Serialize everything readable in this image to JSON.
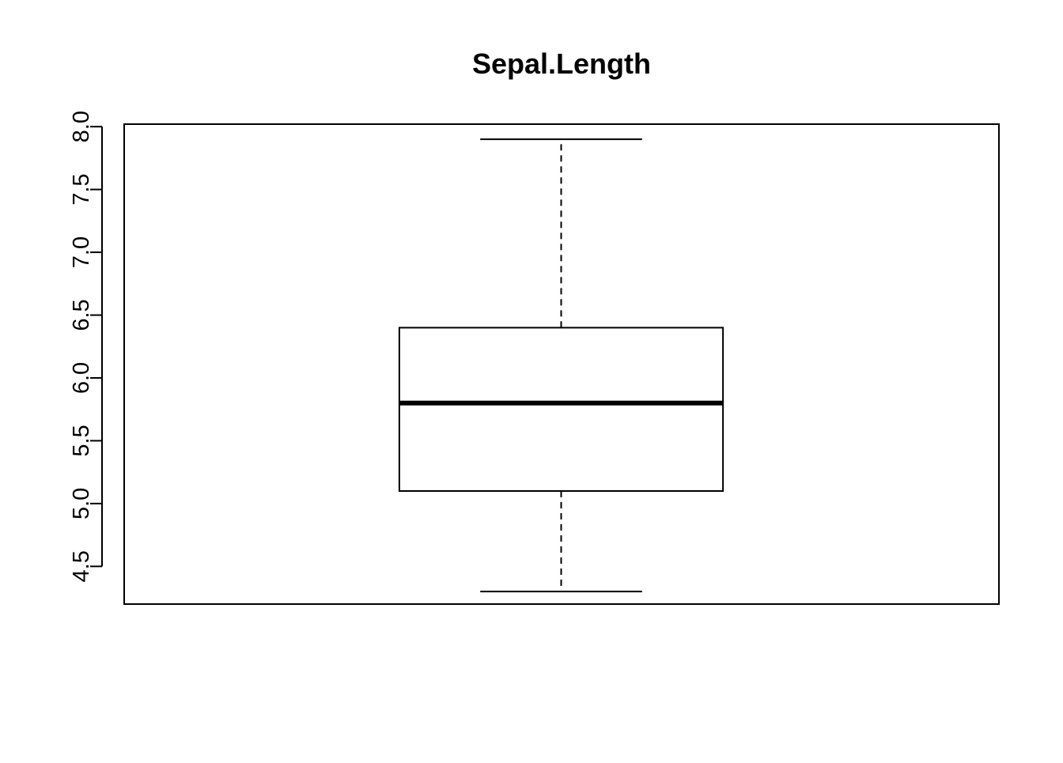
{
  "chart_data": {
    "type": "boxplot",
    "title": "Sepal.Length",
    "xlabel": "",
    "ylabel": "",
    "ylim": [
      4.2,
      8.02
    ],
    "y_ticks": [
      4.5,
      5.0,
      5.5,
      6.0,
      6.5,
      7.0,
      7.5,
      8.0
    ],
    "y_tick_labels": [
      "4.5",
      "5.0",
      "5.5",
      "6.0",
      "6.5",
      "7.0",
      "7.5",
      "8.0"
    ],
    "boxes": [
      {
        "whisker_low": 4.3,
        "q1": 5.1,
        "median": 5.8,
        "q3": 6.4,
        "whisker_high": 7.9
      }
    ],
    "grid": false,
    "colors": {
      "stroke": "#000000",
      "box_fill": "#ffffff",
      "background": "#ffffff"
    }
  }
}
